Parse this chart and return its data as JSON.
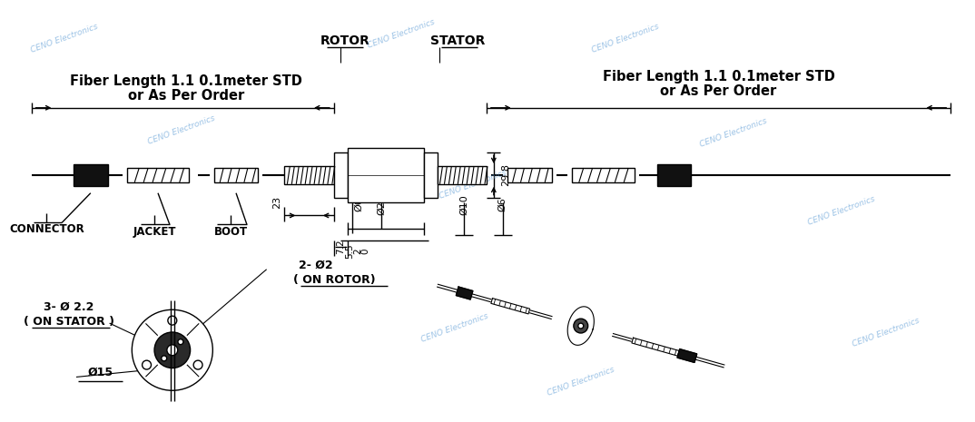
{
  "bg_color": "#ffffff",
  "line_color": "#000000",
  "wc": "#5b9bd5",
  "label_left_title1": "Fiber Length 1.1 0.1meter STD",
  "label_left_title2": "or As Per Order",
  "label_right_title1": "Fiber Length 1.1 0.1meter STD",
  "label_right_title2": "or As Per Order",
  "label_rotor": "ROTOR",
  "label_stator": "STATOR",
  "label_connector": "CONNECTOR",
  "label_jacket": "JACKET",
  "label_boot": "BOOT",
  "dim_23": "23",
  "dim_6_left": "Ø6",
  "dim_20": "Ø20",
  "dim_10": "Ø10",
  "dim_6_right": "Ø6",
  "dim_7_2": "7.2",
  "dim_5_5": "5.5",
  "dim_2": "2",
  "dim_0": "0",
  "dim_29_8": "29.8",
  "dim_stator_holes": "3- Ø 2.2",
  "dim_stator_holes2": "( ON STATOR )",
  "dim_rotor_holes": "2- Ø2",
  "dim_rotor_holes2": "( ON ROTOR)",
  "dim_phi15": "Ø15"
}
